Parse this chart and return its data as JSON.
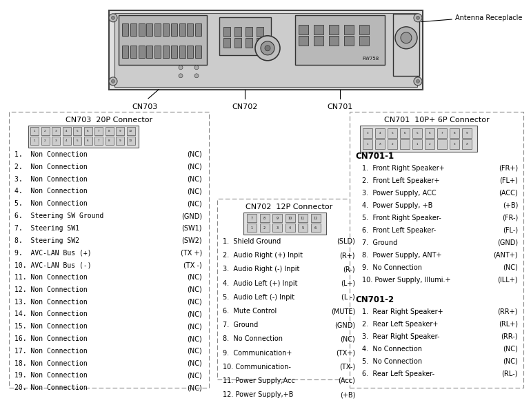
{
  "bg_color": "#ffffff",
  "cn703_title": "CN703  20P Connector",
  "cn703_pins_left": [
    "1.  Non Connection",
    "2.  Non Connection",
    "3.  Non Connection",
    "4.  Non Connection",
    "5.  Non Connection",
    "6.  Steering SW Ground",
    "7.  Steering SW1",
    "8.  Steering SW2",
    "9.  AVC-LAN Bus (+)",
    "10. AVC-LAN Bus (-)",
    "11. Non Connection",
    "12. Non Connection",
    "13. Non Connection",
    "14. Non Connection",
    "15. Non Connection",
    "16. Non Connection",
    "17. Non Connection",
    "18. Non Connection",
    "19. Non Connection",
    "20. Non Connection"
  ],
  "cn703_pins_right": [
    "(NC)",
    "(NC)",
    "(NC)",
    "(NC)",
    "(NC)",
    "(GND)",
    "(SW1)",
    "(SW2)",
    "(TX +)",
    "(TX -)",
    "(NC)",
    "(NC)",
    "(NC)",
    "(NC)",
    "(NC)",
    "(NC)",
    "(NC)",
    "(NC)",
    "(NC)",
    "(NC)"
  ],
  "cn702_title": "CN702  12P Connector",
  "cn702_pins_left": [
    "1.  Shield Ground",
    "2.  Audio Right (+) Inpit",
    "3.  Audio Right (-) Inpit",
    "4.  Audio Left (+) Inpit",
    "5.  Audio Left (-) Inpit",
    "6.  Mute Control",
    "7.  Ground",
    "8.  No Connection",
    "9.  Communication+",
    "10. Communication-",
    "11. Power Supply,Acc",
    "12. Power Supply,+B"
  ],
  "cn702_pins_right": [
    "(SLD)",
    "(R+)",
    "(R-)",
    "(L+)",
    "(L -)",
    "(MUTE)",
    "(GND)",
    "(NC)",
    "(TX+)",
    "(TX-)",
    "(Acc)",
    "(+B)"
  ],
  "cn701_title": "CN701  10P+ 6P Connector",
  "cn701_1_title": "CN701-1",
  "cn701_1_pins_left": [
    "1.  Front Right Speaker+",
    "2.  Front Left Speaker+",
    "3.  Power Supply, ACC",
    "4.  Power Supply, +B",
    "5.  Front Right Speaker-",
    "6.  Front Left Speaker-",
    "7.  Ground",
    "8.  Power Supply, ANT+",
    "9.  No Connection",
    "10. Power Supply, Illumi.+"
  ],
  "cn701_1_pins_right": [
    "(FR+)",
    "(FL+)",
    "(ACC)",
    "(+B)",
    "(FR-)",
    "(FL-)",
    "(GND)",
    "(ANT+)",
    "(NC)",
    "(ILL+)"
  ],
  "cn701_2_title": "CN701-2",
  "cn701_2_pins_left": [
    "1.  Rear Right Speaker+",
    "2.  Rear Left Speaker+",
    "3.  Rear Right Speaker-",
    "4.  No Connection",
    "5.  No Connection",
    "6.  Rear Left Speaker-"
  ],
  "cn701_2_pins_right": [
    "(RR+)",
    "(RL+)",
    "(RR-)",
    "(NC)",
    "(NC)",
    "(RL-)"
  ],
  "antenna_label": "Antenna Receplacle",
  "cn703_label": "CN703",
  "cn702_label": "CN702",
  "cn701_label": "CN701",
  "fw_label": "FW758"
}
